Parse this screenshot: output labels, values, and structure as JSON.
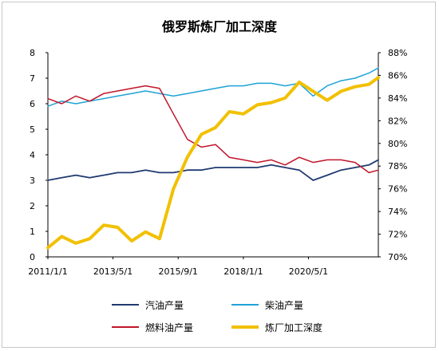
{
  "chart_data": {
    "type": "line",
    "title": "俄罗斯炼厂加工深度",
    "xlabel": "",
    "ylabel_left": "",
    "ylabel_right": "",
    "x_tick_labels": [
      "2011/1/1",
      "2013/5/1",
      "2015/9/1",
      "2018/1/1",
      "2020/5/1"
    ],
    "x_tick_dates": [
      "2011-01-01",
      "2013-05-01",
      "2015-09-01",
      "2018-01-01",
      "2020-05-01"
    ],
    "x_range": [
      "2011-01-01",
      "2022-11-01"
    ],
    "ylim_left": [
      0,
      8
    ],
    "y_ticks_left": [
      "0",
      "1",
      "2",
      "3",
      "4",
      "5",
      "6",
      "7",
      "8"
    ],
    "ylim_right": [
      70,
      88
    ],
    "y_ticks_right": [
      "70%",
      "72%",
      "74%",
      "76%",
      "78%",
      "80%",
      "82%",
      "84%",
      "86%",
      "88%"
    ],
    "grid": false,
    "legend_position": "bottom",
    "x": [
      "2011-01",
      "2011-07",
      "2012-01",
      "2012-07",
      "2013-01",
      "2013-07",
      "2014-01",
      "2014-07",
      "2015-01",
      "2015-07",
      "2016-01",
      "2016-07",
      "2017-01",
      "2017-07",
      "2018-01",
      "2018-07",
      "2019-01",
      "2019-07",
      "2020-01",
      "2020-07",
      "2021-01",
      "2021-07",
      "2022-01",
      "2022-07",
      "2022-11"
    ],
    "series": [
      {
        "name": "汽油产量",
        "axis": "left",
        "color": "#1f3a70",
        "width": 1.8,
        "values": [
          3.0,
          3.1,
          3.2,
          3.1,
          3.2,
          3.3,
          3.3,
          3.4,
          3.3,
          3.3,
          3.4,
          3.4,
          3.5,
          3.5,
          3.5,
          3.5,
          3.6,
          3.5,
          3.4,
          3.0,
          3.2,
          3.4,
          3.5,
          3.6,
          3.8
        ]
      },
      {
        "name": "柴油产量",
        "axis": "left",
        "color": "#1fa3d6",
        "width": 1.5,
        "values": [
          5.9,
          6.1,
          6.0,
          6.1,
          6.2,
          6.3,
          6.4,
          6.5,
          6.4,
          6.3,
          6.4,
          6.5,
          6.6,
          6.7,
          6.7,
          6.8,
          6.8,
          6.7,
          6.8,
          6.3,
          6.7,
          6.9,
          7.0,
          7.2,
          7.4
        ]
      },
      {
        "name": "燃料油产量",
        "axis": "left",
        "color": "#c0152a",
        "width": 1.5,
        "values": [
          6.2,
          6.0,
          6.3,
          6.1,
          6.4,
          6.5,
          6.6,
          6.7,
          6.6,
          5.6,
          4.6,
          4.3,
          4.4,
          3.9,
          3.8,
          3.7,
          3.8,
          3.6,
          3.9,
          3.7,
          3.8,
          3.8,
          3.7,
          3.3,
          3.4
        ]
      },
      {
        "name": "炼厂加工深度",
        "axis": "right",
        "color": "#f2c000",
        "width": 4,
        "values": [
          70.8,
          71.8,
          71.2,
          71.6,
          72.8,
          72.6,
          71.4,
          72.2,
          71.6,
          76.0,
          78.8,
          80.8,
          81.4,
          82.8,
          82.6,
          83.4,
          83.6,
          84.0,
          85.4,
          84.6,
          83.8,
          84.6,
          85.0,
          85.2,
          85.8
        ]
      }
    ]
  }
}
